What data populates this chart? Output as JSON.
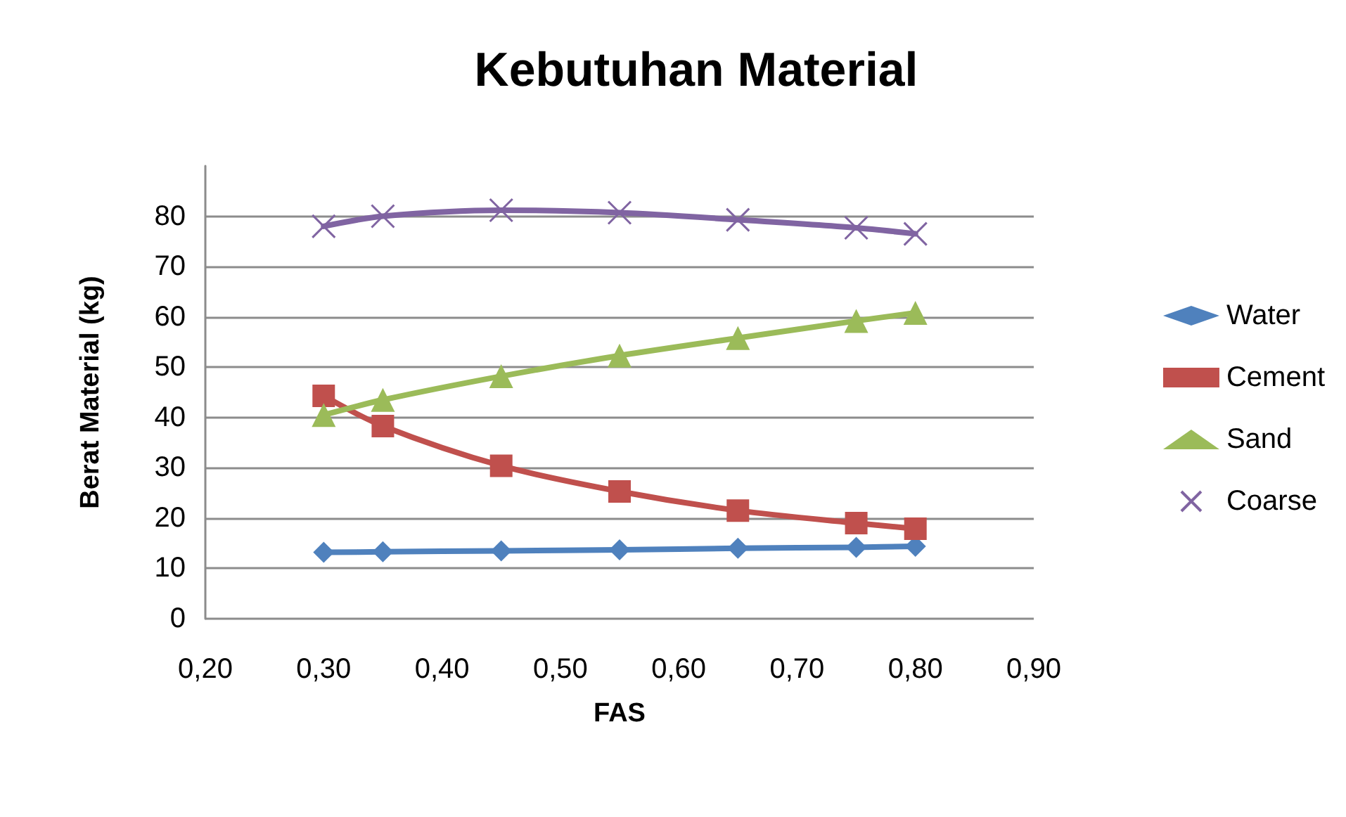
{
  "chart_data": {
    "type": "line",
    "title": "Kebutuhan Material",
    "xlabel": "FAS",
    "ylabel": "Berat Material (kg)",
    "x": [
      0.3,
      0.35,
      0.45,
      0.55,
      0.65,
      0.75,
      0.8
    ],
    "series": [
      {
        "name": "Water",
        "color": "#4f81bd",
        "marker": "diamond",
        "values": [
          13.2,
          13.3,
          13.5,
          13.7,
          14.0,
          14.2,
          14.4
        ]
      },
      {
        "name": "Cement",
        "color": "#c0504d",
        "marker": "square",
        "values": [
          44.3,
          38.3,
          30.4,
          25.3,
          21.5,
          19.0,
          17.9
        ]
      },
      {
        "name": "Sand",
        "color": "#9bbb59",
        "marker": "triangle",
        "values": [
          40.5,
          43.5,
          48.2,
          52.3,
          55.8,
          59.2,
          60.8
        ]
      },
      {
        "name": "Coarse",
        "color": "#8064a2",
        "marker": "cross",
        "values": [
          78.0,
          80.0,
          81.2,
          80.7,
          79.3,
          77.7,
          76.5
        ]
      }
    ],
    "xlim": [
      0.2,
      0.9
    ],
    "xticks": [
      {
        "value": 0.2,
        "label": "0,20"
      },
      {
        "value": 0.3,
        "label": "0,30"
      },
      {
        "value": 0.4,
        "label": "0,40"
      },
      {
        "value": 0.5,
        "label": "0,50"
      },
      {
        "value": 0.6,
        "label": "0,60"
      },
      {
        "value": 0.7,
        "label": "0,70"
      },
      {
        "value": 0.8,
        "label": "0,80"
      },
      {
        "value": 0.9,
        "label": "0,90"
      }
    ],
    "ylim": [
      0,
      90
    ],
    "yticks": [
      0,
      10,
      20,
      30,
      40,
      50,
      60,
      70,
      80
    ],
    "grid": "y",
    "legend": "right"
  }
}
